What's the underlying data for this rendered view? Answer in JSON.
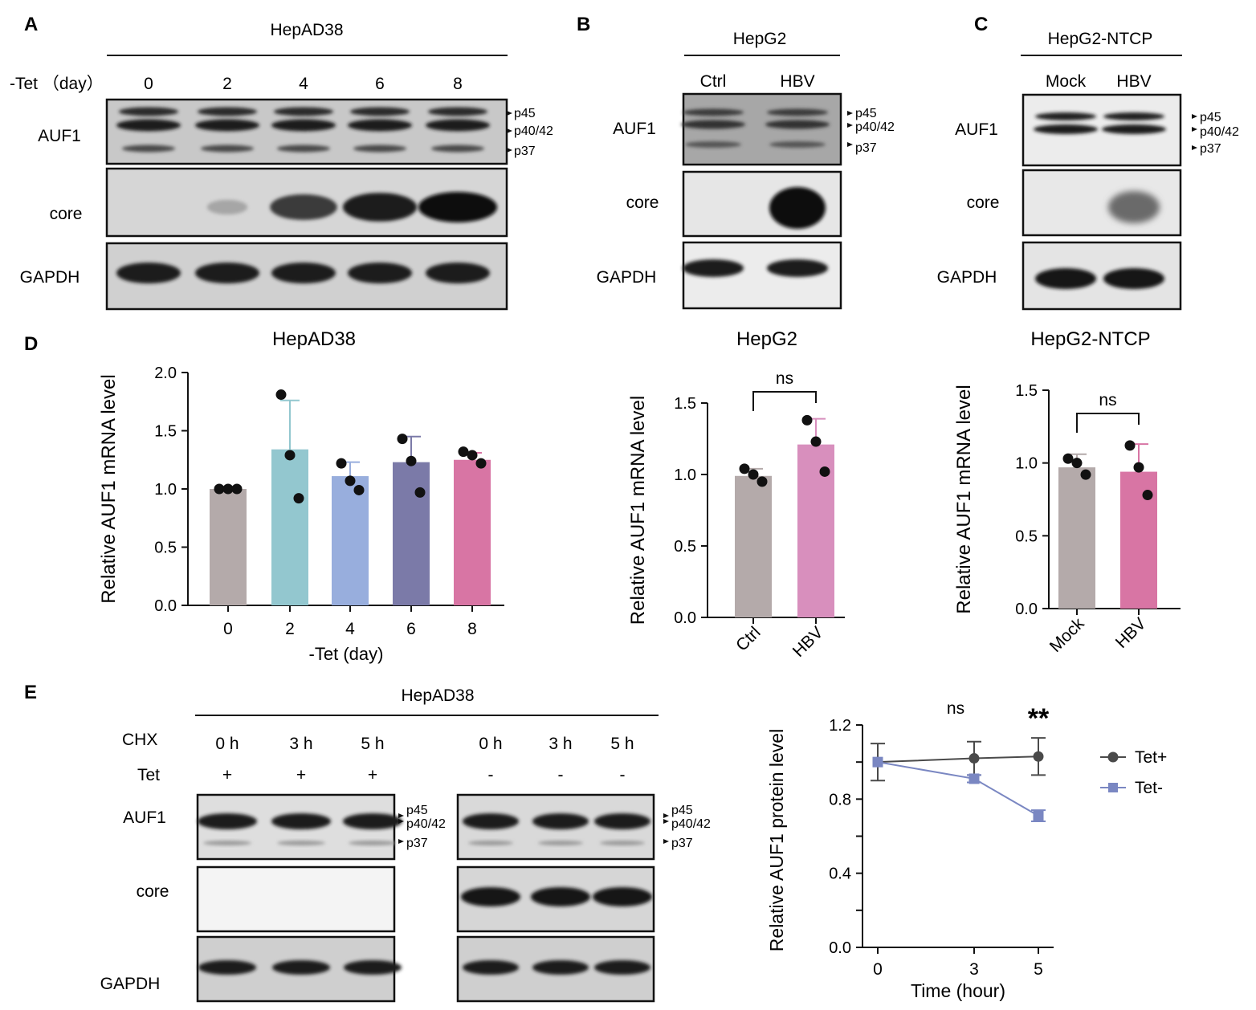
{
  "panels": {
    "A": {
      "letter": "A",
      "header": "HepAD38",
      "row_label": "-Tet （day）",
      "lanes": [
        "0",
        "2",
        "4",
        "6",
        "8"
      ],
      "blots": [
        "AUF1",
        "core",
        "GAPDH"
      ],
      "isoforms": [
        "p45",
        "p40/42",
        "p37"
      ],
      "core_intensity": [
        0.0,
        0.18,
        0.75,
        0.9,
        1.0
      ]
    },
    "B": {
      "letter": "B",
      "header": "HepG2",
      "lanes": [
        "Ctrl",
        "HBV"
      ],
      "blots": [
        "AUF1",
        "core",
        "GAPDH"
      ],
      "isoforms": [
        "p45",
        "p40/42",
        "p37"
      ],
      "core_intensity": [
        0.0,
        1.0
      ]
    },
    "C": {
      "letter": "C",
      "header": "HepG2-NTCP",
      "lanes": [
        "Mock",
        "HBV"
      ],
      "blots": [
        "AUF1",
        "core",
        "GAPDH"
      ],
      "isoforms": [
        "p45",
        "p40/42",
        "p37"
      ],
      "core_intensity": [
        0.0,
        0.6
      ]
    },
    "D": {
      "letter": "D"
    },
    "E": {
      "letter": "E",
      "header": "HepAD38",
      "chx_label": "CHX",
      "tet_label": "Tet",
      "time_lanes": [
        "0 h",
        "3 h",
        "5 h"
      ],
      "tet_plus": [
        "+",
        "+",
        "+"
      ],
      "tet_minus": [
        "-",
        "-",
        "-"
      ],
      "blots": [
        "AUF1",
        "core",
        "GAPDH"
      ],
      "isoforms": [
        "p45",
        "p40/42",
        "p37"
      ]
    }
  },
  "colors": {
    "bar_grey": "#b4aaaa",
    "bar_teal": "#93c7cf",
    "bar_blue": "#98aedd",
    "bar_purple": "#7b7aa8",
    "bar_pink": "#d875a4",
    "bar_pink_light": "#d88fbd",
    "tet_plus": "#4a4a4a",
    "tet_minus": "#7a87c2"
  },
  "chart_data": [
    {
      "id": "D1",
      "type": "bar",
      "title": "HepAD38",
      "xlabel": "-Tet (day)",
      "ylabel": "Relative AUF1 mRNA level",
      "categories": [
        "0",
        "2",
        "4",
        "6",
        "8"
      ],
      "values": [
        1.0,
        1.34,
        1.11,
        1.23,
        1.25
      ],
      "error": [
        0.01,
        0.42,
        0.12,
        0.22,
        0.06
      ],
      "points": [
        [
          1.0,
          1.0,
          1.0
        ],
        [
          1.81,
          1.29,
          0.92
        ],
        [
          1.22,
          1.07,
          0.99
        ],
        [
          1.43,
          1.24,
          0.97
        ],
        [
          1.32,
          1.29,
          1.22
        ]
      ],
      "ylim": [
        0,
        2.0
      ],
      "yticks": [
        "0.0",
        "0.5",
        "1.0",
        "1.5",
        "2.0"
      ],
      "colors": [
        "#b4aaaa",
        "#93c7cf",
        "#98aedd",
        "#7b7aa8",
        "#d875a4"
      ]
    },
    {
      "id": "D2",
      "type": "bar",
      "title": "HepG2",
      "ylabel": "Relative AUF1 mRNA level",
      "categories": [
        "Ctrl",
        "HBV"
      ],
      "values": [
        0.99,
        1.21
      ],
      "error": [
        0.05,
        0.18
      ],
      "points": [
        [
          1.04,
          1.0,
          0.95
        ],
        [
          1.38,
          1.23,
          1.02
        ]
      ],
      "ylim": [
        0,
        1.5
      ],
      "yticks": [
        "0.0",
        "0.5",
        "1.0",
        "1.5"
      ],
      "significance": "ns",
      "colors": [
        "#b4aaaa",
        "#d88fbd"
      ]
    },
    {
      "id": "D3",
      "type": "bar",
      "title": "HepG2-NTCP",
      "ylabel": "Relative AUF1 mRNA level",
      "categories": [
        "Mock",
        "HBV"
      ],
      "values": [
        0.97,
        0.94
      ],
      "error": [
        0.09,
        0.19
      ],
      "points": [
        [
          1.03,
          1.0,
          0.92
        ],
        [
          1.12,
          0.97,
          0.78
        ]
      ],
      "ylim": [
        0,
        1.5
      ],
      "yticks": [
        "0.0",
        "0.5",
        "1.0",
        "1.5"
      ],
      "significance": "ns",
      "colors": [
        "#b4aaaa",
        "#d875a4"
      ]
    },
    {
      "id": "E",
      "type": "line",
      "xlabel": "Time (hour)",
      "ylabel": "Relative AUF1 protein  level",
      "x": [
        0,
        3,
        5
      ],
      "xticks": [
        "0",
        "3",
        "5"
      ],
      "ylim": [
        0.0,
        1.2
      ],
      "yticks": [
        "0.0",
        "0.4",
        "0.8",
        "1.2"
      ],
      "annotations": [
        "ns",
        "**"
      ],
      "legend": "right",
      "series": [
        {
          "name": "Tet+",
          "values": [
            1.0,
            1.02,
            1.03
          ],
          "error": [
            0.1,
            0.09,
            0.1
          ],
          "marker": "circle",
          "color": "#4a4a4a"
        },
        {
          "name": "Tet-",
          "values": [
            1.0,
            0.91,
            0.71
          ],
          "error": [
            0.0,
            0.02,
            0.03
          ],
          "marker": "square",
          "color": "#7a87c2"
        }
      ]
    }
  ]
}
